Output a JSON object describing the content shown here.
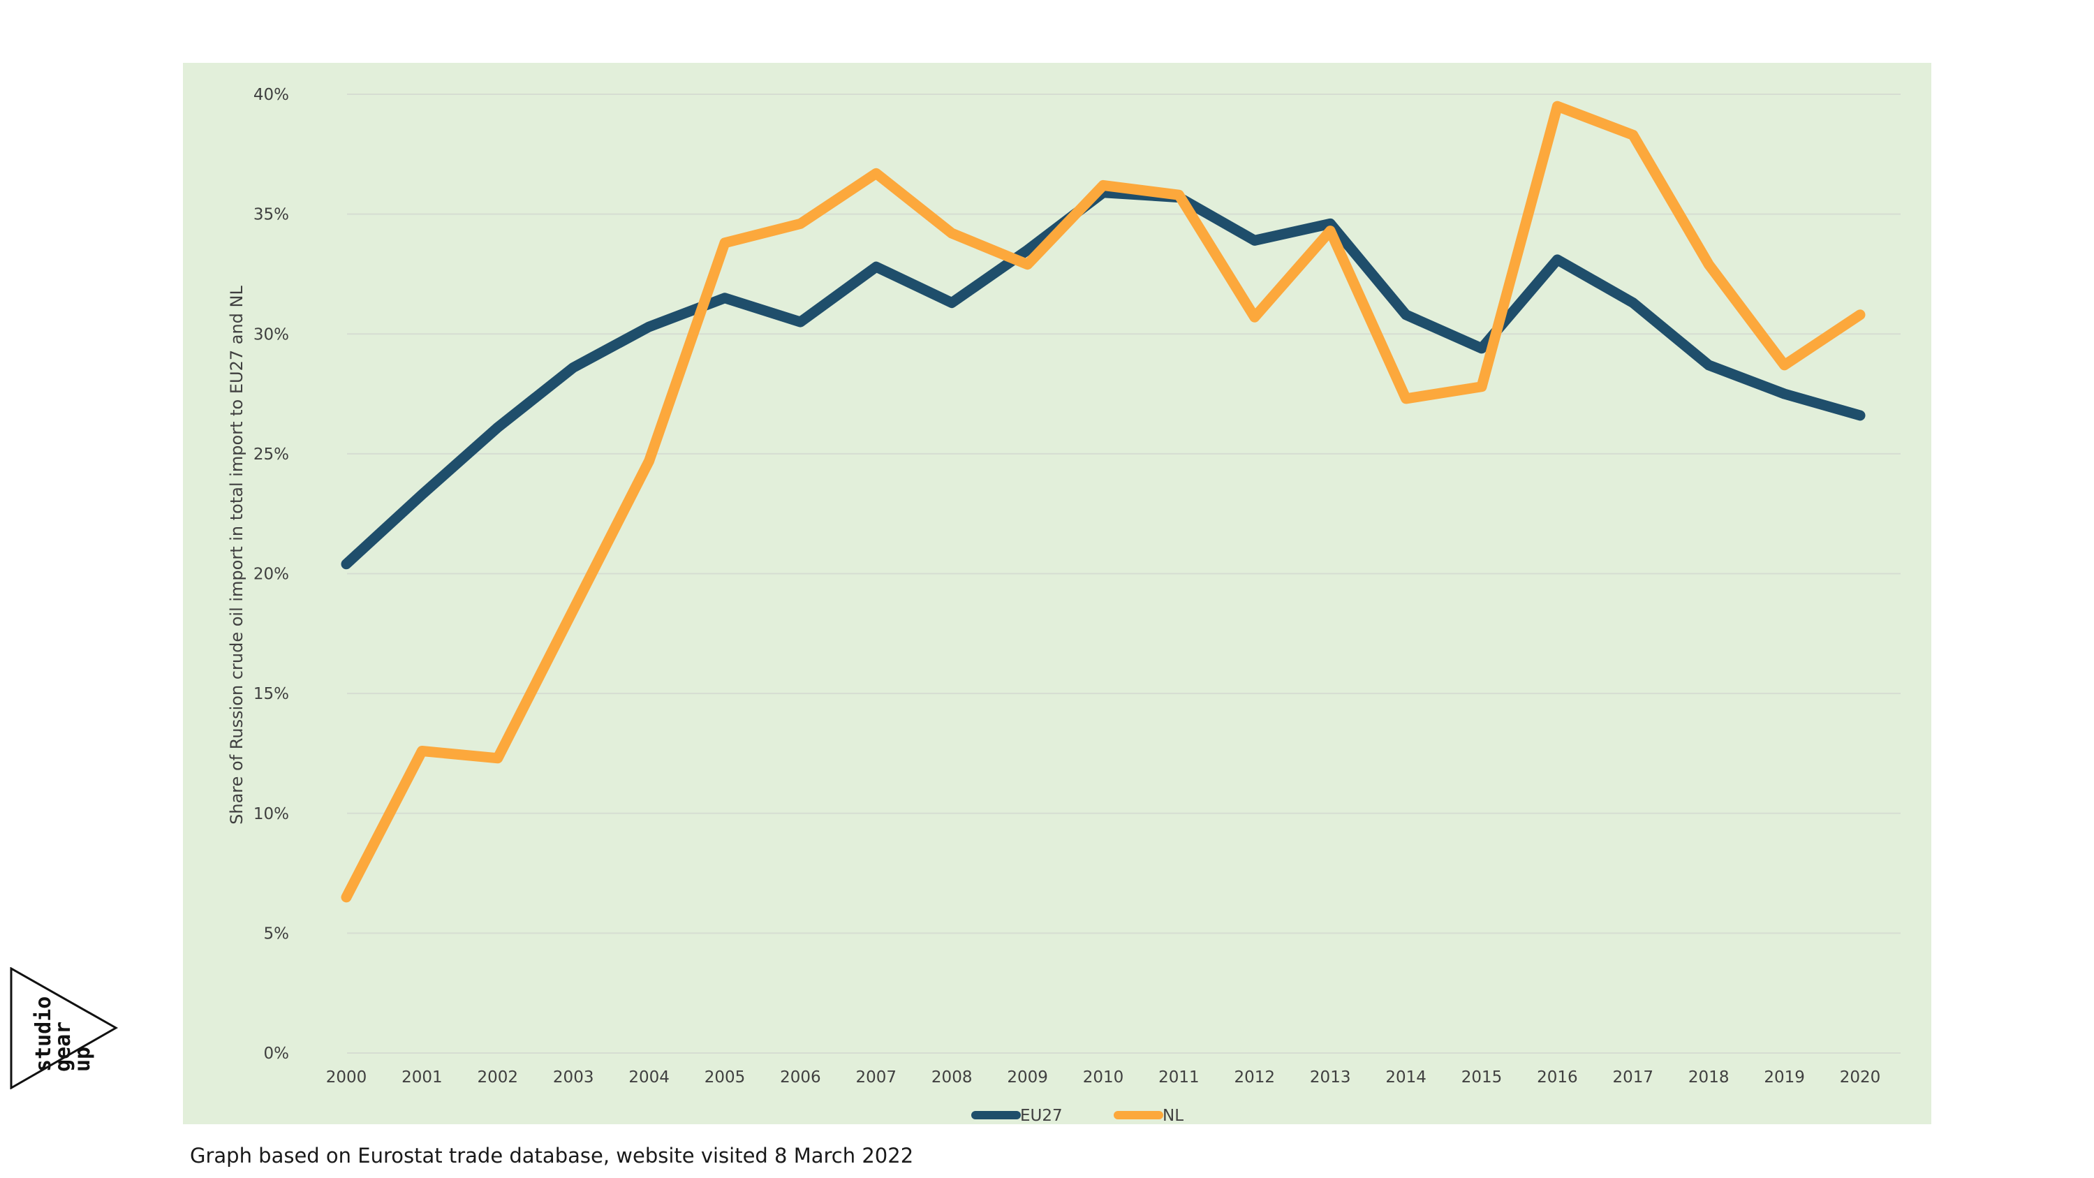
{
  "caption": "Graph based on Eurostat trade database, website visited 8 March 2022",
  "logo": {
    "lines": [
      "studio",
      "gear",
      "up"
    ]
  },
  "colors": {
    "background": "#e2efda",
    "eu27": "#1f4e6b",
    "nl": "#fca83c",
    "grid": "#d6ddd2"
  },
  "chart_data": {
    "type": "line",
    "ylabel": "Share of Russion crude oil import in total import  to EU27 and NL",
    "xlabel": "",
    "x": [
      "2000",
      "2001",
      "2002",
      "2003",
      "2004",
      "2005",
      "2006",
      "2007",
      "2008",
      "2009",
      "2010",
      "2011",
      "2012",
      "2013",
      "2014",
      "2015",
      "2016",
      "2017",
      "2018",
      "2019",
      "2020"
    ],
    "ylim": [
      0,
      40
    ],
    "yticks": [
      0,
      5,
      10,
      15,
      20,
      25,
      30,
      35,
      40
    ],
    "ytick_labels": [
      "0%",
      "5%",
      "10%",
      "15%",
      "20%",
      "25%",
      "30%",
      "35%",
      "40%"
    ],
    "grid": true,
    "legend_position": "bottom-center",
    "series": [
      {
        "name": "EU27",
        "color": "#1f4e6b",
        "values": [
          20.4,
          23.3,
          26.1,
          28.6,
          30.3,
          31.5,
          30.5,
          32.8,
          31.3,
          33.5,
          35.9,
          35.7,
          33.9,
          34.6,
          30.8,
          29.4,
          33.1,
          31.3,
          28.7,
          27.5,
          26.6
        ]
      },
      {
        "name": "NL",
        "color": "#fca83c",
        "values": [
          6.5,
          12.6,
          12.3,
          18.5,
          24.7,
          33.8,
          34.6,
          36.7,
          34.2,
          32.9,
          36.2,
          35.8,
          30.7,
          34.3,
          27.3,
          27.8,
          39.5,
          38.3,
          32.9,
          28.7,
          30.8
        ]
      }
    ]
  }
}
